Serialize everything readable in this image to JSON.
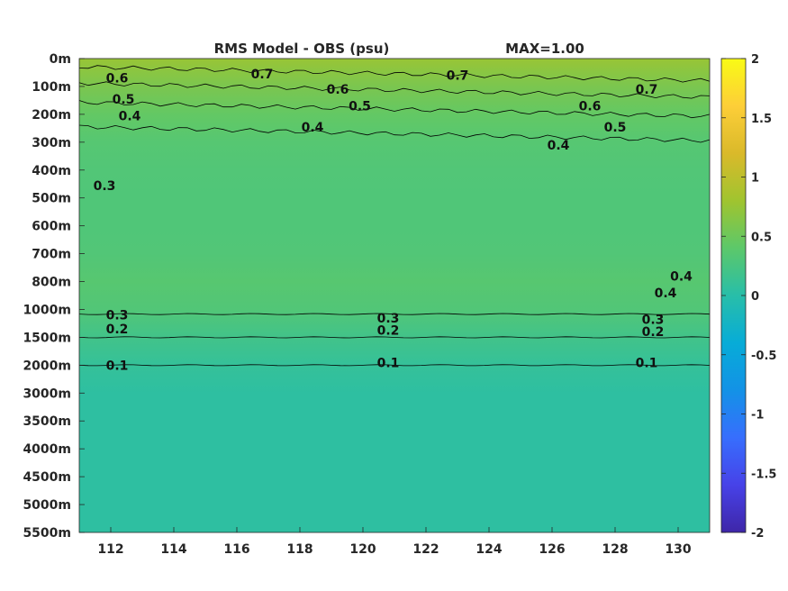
{
  "chart_data": {
    "type": "heatmap",
    "title": "RMS Model - OBS (psu)",
    "subtitle": "MAX=1.00",
    "x_ticks": [
      112,
      114,
      116,
      118,
      120,
      122,
      124,
      126,
      128,
      130
    ],
    "xlim": [
      111,
      131
    ],
    "y_ticks": [
      "0m",
      "100m",
      "200m",
      "300m",
      "400m",
      "500m",
      "600m",
      "700m",
      "800m",
      "1000m",
      "1500m",
      "2000m",
      "3000m",
      "3500m",
      "4000m",
      "4500m",
      "5000m",
      "5500m"
    ],
    "colorbar": {
      "ticks": [
        2,
        1.5,
        1,
        0.5,
        0,
        -0.5,
        -1,
        -1.5,
        -2
      ],
      "range": [
        -2,
        2
      ],
      "colormap": "parula"
    },
    "depth_profile": [
      {
        "depth": "0m",
        "value": 0.75
      },
      {
        "depth": "100m",
        "value": 0.58
      },
      {
        "depth": "200m",
        "value": 0.44
      },
      {
        "depth": "300m",
        "value": 0.35
      },
      {
        "depth": "400m",
        "value": 0.32
      },
      {
        "depth": "500m",
        "value": 0.31
      },
      {
        "depth": "600m",
        "value": 0.31
      },
      {
        "depth": "700m",
        "value": 0.32
      },
      {
        "depth": "800m",
        "value": 0.36
      },
      {
        "depth": "1000m",
        "value": 0.32
      },
      {
        "depth": "1500m",
        "value": 0.2
      },
      {
        "depth": "2000m",
        "value": 0.1
      },
      {
        "depth": "3000m",
        "value": 0.05
      },
      {
        "depth": "3500m",
        "value": 0.05
      },
      {
        "depth": "4000m",
        "value": 0.05
      },
      {
        "depth": "4500m",
        "value": 0.05
      },
      {
        "depth": "5000m",
        "value": 0.05
      },
      {
        "depth": "5500m",
        "value": 0.05
      }
    ],
    "contour_labels": [
      {
        "text": "0.6",
        "x": 112.2,
        "depth_index": 0.7
      },
      {
        "text": "0.7",
        "x": 116.8,
        "depth_index": 0.55
      },
      {
        "text": "0.7",
        "x": 123.0,
        "depth_index": 0.6
      },
      {
        "text": "0.7",
        "x": 129.0,
        "depth_index": 1.1
      },
      {
        "text": "0.6",
        "x": 119.2,
        "depth_index": 1.1
      },
      {
        "text": "0.6",
        "x": 127.2,
        "depth_index": 1.7
      },
      {
        "text": "0.5",
        "x": 112.4,
        "depth_index": 1.45
      },
      {
        "text": "0.5",
        "x": 119.9,
        "depth_index": 1.7
      },
      {
        "text": "0.5",
        "x": 128.0,
        "depth_index": 2.45
      },
      {
        "text": "0.4",
        "x": 112.6,
        "depth_index": 2.05
      },
      {
        "text": "0.4",
        "x": 118.4,
        "depth_index": 2.45
      },
      {
        "text": "0.4",
        "x": 126.2,
        "depth_index": 3.1
      },
      {
        "text": "0.3",
        "x": 111.8,
        "depth_index": 4.55
      },
      {
        "text": "0.4",
        "x": 130.1,
        "depth_index": 7.8
      },
      {
        "text": "0.4",
        "x": 129.6,
        "depth_index": 8.4
      },
      {
        "text": "0.3",
        "x": 112.2,
        "depth_index": 9.2
      },
      {
        "text": "0.3",
        "x": 120.8,
        "depth_index": 9.3
      },
      {
        "text": "0.3",
        "x": 129.2,
        "depth_index": 9.35
      },
      {
        "text": "0.2",
        "x": 112.2,
        "depth_index": 9.7
      },
      {
        "text": "0.2",
        "x": 120.8,
        "depth_index": 9.75
      },
      {
        "text": "0.2",
        "x": 129.2,
        "depth_index": 9.8
      },
      {
        "text": "0.1",
        "x": 112.2,
        "depth_index": 11.0
      },
      {
        "text": "0.1",
        "x": 120.8,
        "depth_index": 10.9
      },
      {
        "text": "0.1",
        "x": 129.0,
        "depth_index": 10.9
      }
    ]
  }
}
